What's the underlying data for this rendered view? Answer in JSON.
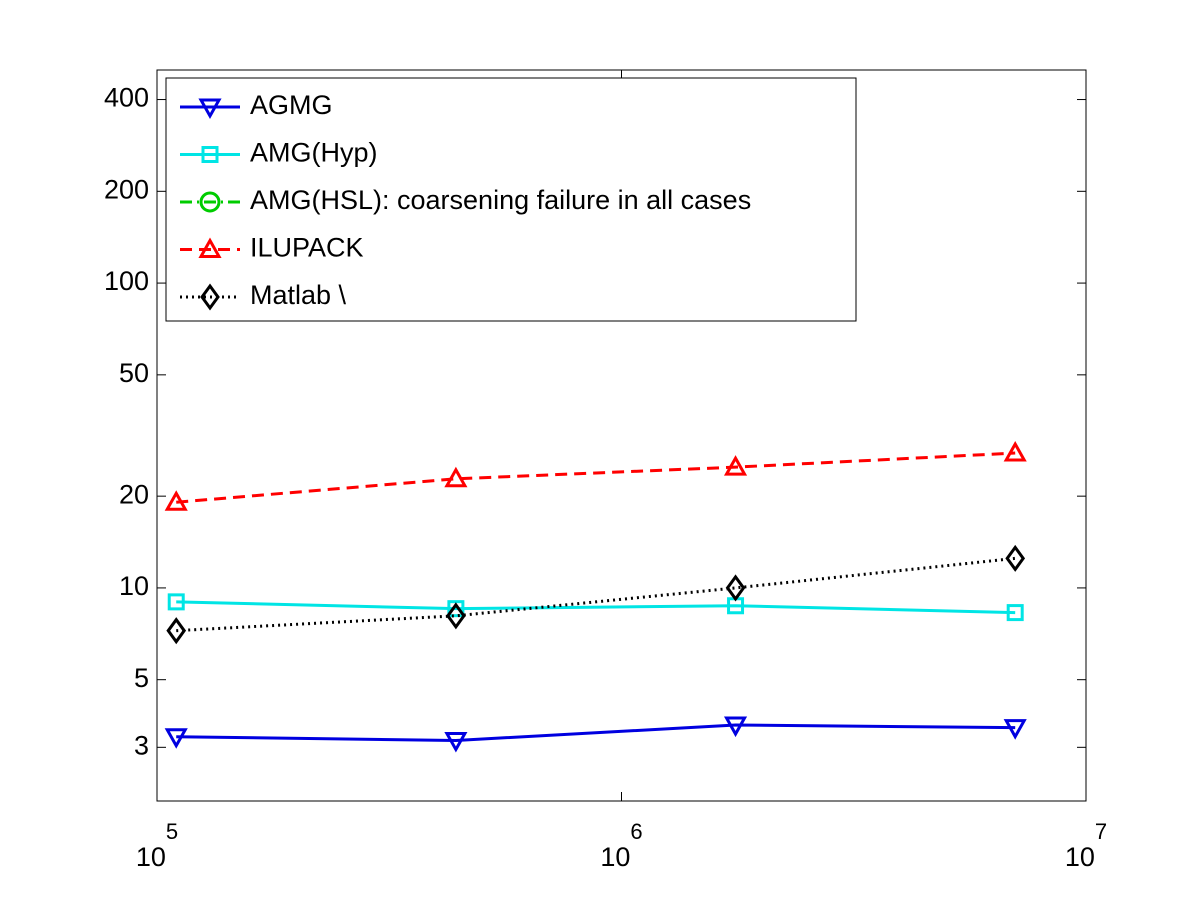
{
  "chart_data": {
    "type": "line",
    "x": [
      110000,
      440000,
      1760000,
      7040000
    ],
    "series": [
      {
        "name": "AGMG",
        "color": "#0000e0",
        "marker": "triangle-down",
        "dash": "solid",
        "values": [
          3.25,
          3.16,
          3.55,
          3.48
        ]
      },
      {
        "name": "AMG(Hyp)",
        "color": "#00e5e5",
        "marker": "square",
        "dash": "solid",
        "values": [
          9.0,
          8.55,
          8.74,
          8.3
        ]
      },
      {
        "name": "AMG(HSL): coarsening failure in all cases",
        "color": "#00cc00",
        "marker": "circle",
        "dash": "dashdot",
        "values": [
          null,
          null,
          null,
          null
        ]
      },
      {
        "name": "ILUPACK",
        "color": "#ff0000",
        "marker": "triangle-up",
        "dash": "dashed",
        "values": [
          19.1,
          22.8,
          24.9,
          27.7
        ]
      },
      {
        "name": "Matlab \\",
        "color": "#000000",
        "marker": "diamond",
        "dash": "dotted",
        "values": [
          7.24,
          8.1,
          10,
          12.5
        ]
      }
    ],
    "xlim": [
      100000,
      10000000
    ],
    "xticks": [
      {
        "value": 100000,
        "label": "10^5"
      },
      {
        "value": 1000000,
        "label": "10^6"
      },
      {
        "value": 10000000,
        "label": "10^7"
      }
    ],
    "ylim": [
      2,
      500
    ],
    "yticks": [
      3,
      5,
      10,
      20,
      50,
      100,
      200,
      400
    ],
    "xscale": "log",
    "yscale": "log",
    "grid": false,
    "legend": "upper left"
  }
}
